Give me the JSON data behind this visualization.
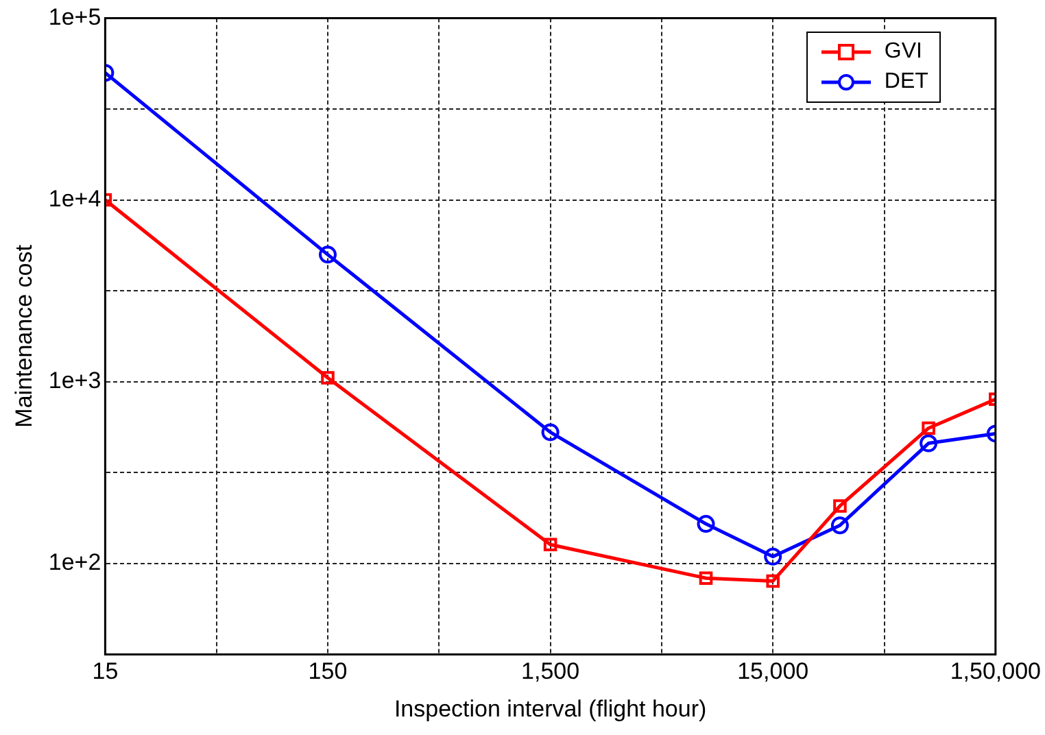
{
  "chart_data": {
    "type": "line",
    "xlabel": "Inspection interval (flight hour)",
    "ylabel": "Maintenance cost",
    "x": [
      15,
      150,
      1500,
      7500,
      15000,
      30000,
      75000,
      150000
    ],
    "series": [
      {
        "name": "GVI",
        "color": "#ff0000",
        "marker": "square",
        "values": [
          10000,
          1050,
          127,
          83,
          80,
          207,
          555,
          800
        ]
      },
      {
        "name": "DET",
        "color": "#0000ff",
        "marker": "circle",
        "values": [
          50000,
          5000,
          527,
          165,
          109,
          162,
          458,
          518
        ]
      }
    ],
    "log": "xy",
    "xlim": [
      15,
      150000
    ],
    "ylim": [
      31.6,
      100000
    ],
    "xticks": [
      15,
      {
        "value": 47.4,
        "label": null
      },
      150,
      {
        "value": 474,
        "label": null
      },
      {
        "value": 1500,
        "label": "1,500"
      },
      {
        "value": 4743,
        "label": null
      },
      {
        "value": 15000,
        "label": "15,000"
      },
      {
        "value": 47434,
        "label": null
      },
      {
        "value": 150000,
        "label": "1,50,000"
      }
    ],
    "yticks": [
      {
        "value": 31.6,
        "label": null
      },
      {
        "value": 100,
        "label": "1e+2"
      },
      {
        "value": 316,
        "label": null
      },
      {
        "value": 1000,
        "label": "1e+3"
      },
      {
        "value": 3162,
        "label": null
      },
      {
        "value": 10000,
        "label": "1e+4"
      },
      {
        "value": 31623,
        "label": null
      },
      {
        "value": 100000,
        "label": "1e+5"
      }
    ],
    "grid": true,
    "legend": "top right",
    "line_style": "solid"
  }
}
